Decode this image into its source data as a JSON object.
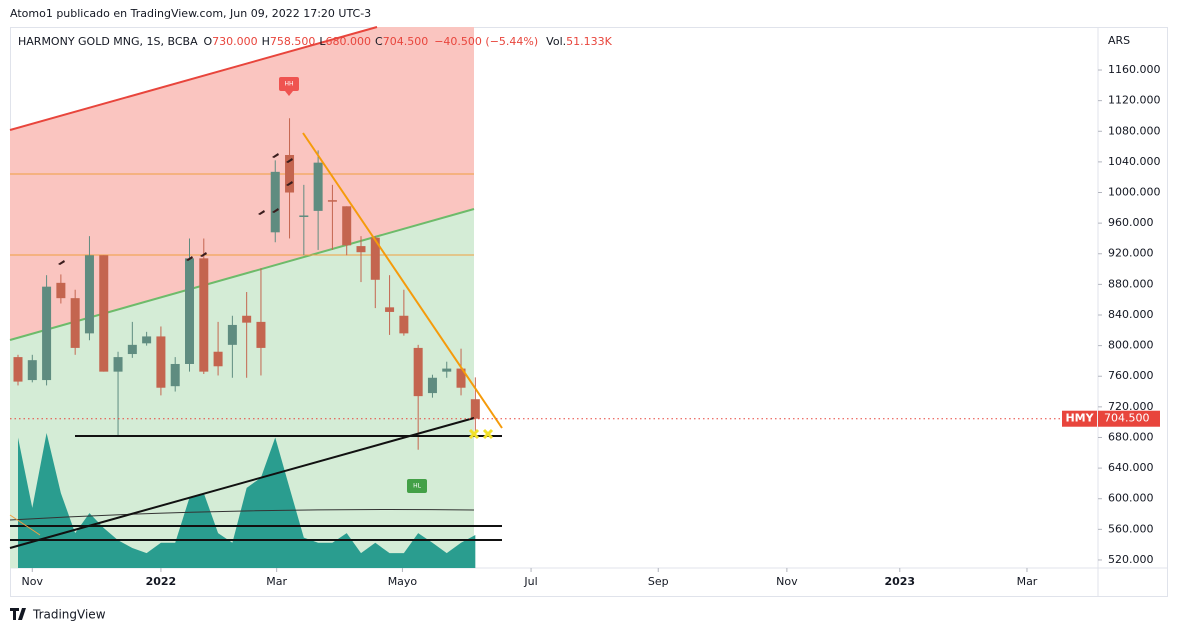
{
  "attribution": "Atomo1 publicado en TradingView.com, Jun 09, 2022 17:20 UTC-3",
  "brand": "TradingView",
  "chart_data": {
    "type": "candlestick",
    "title": "HARMONY GOLD MNG, 1S, BCBA",
    "header_items": [
      {
        "key": "O",
        "text": "730.000"
      },
      {
        "key": "H",
        "text": "758.500"
      },
      {
        "key": "L",
        "text": "680.000"
      },
      {
        "key": "C",
        "text": "704.500"
      }
    ],
    "change": "−40.500 (−5.44%)",
    "volume_key": "Vol.",
    "volume_text": "51.133K",
    "currency": "ARS",
    "symbol_short": "HMY",
    "last_price_label": "704.500",
    "x": [
      0,
      1,
      2,
      3,
      4,
      5,
      6,
      7,
      8,
      9,
      10,
      11,
      12,
      13,
      14,
      15,
      16,
      17,
      18,
      19,
      20,
      21,
      22,
      23,
      24,
      25,
      26,
      27,
      28,
      29,
      30,
      31,
      32
    ],
    "open": [
      785,
      755,
      755,
      882,
      862,
      816,
      918,
      766,
      789,
      803,
      812,
      747,
      776,
      914,
      792,
      801,
      839,
      831,
      948,
      1049,
      968,
      976,
      990,
      982,
      930,
      941,
      850,
      839,
      797,
      738,
      766,
      770,
      730
    ],
    "high": [
      788,
      788,
      892,
      893,
      873,
      943,
      918,
      792,
      831,
      818,
      825,
      785,
      940,
      940,
      831,
      839,
      870,
      901,
      1042,
      1097,
      1010,
      1055,
      1010,
      982,
      943,
      943,
      892,
      873,
      801,
      762,
      779,
      796,
      758.5
    ],
    "low": [
      748,
      752,
      748,
      855,
      788,
      807,
      766,
      681,
      784,
      800,
      735,
      740,
      766,
      763,
      761,
      758,
      758,
      761,
      935,
      940,
      918,
      925,
      925,
      918,
      883,
      849,
      814,
      813,
      664,
      732,
      758,
      735,
      680
    ],
    "close": [
      753,
      781,
      877,
      862,
      797,
      918,
      766,
      785,
      801,
      812,
      745,
      776,
      914,
      766,
      773,
      827,
      830,
      797,
      1027,
      1000,
      970,
      1039,
      988,
      931,
      922,
      886,
      844,
      816,
      734,
      758,
      770,
      745,
      704.5
    ],
    "volume": [
      202,
      93,
      209,
      116,
      54,
      85,
      62,
      43,
      31,
      23,
      39,
      39,
      109,
      116,
      54,
      39,
      124,
      140,
      202,
      124,
      47,
      39,
      39,
      54,
      23,
      39,
      23,
      23,
      54,
      39,
      23,
      39,
      51.133
    ],
    "up_color": "#5f8c80",
    "down_color": "#c4654f",
    "volume_color": "#2a9d8f",
    "xlim": [
      -0.56,
      75.5
    ],
    "xticks": [
      {
        "value": 1,
        "label": "Nov"
      },
      {
        "value": 10,
        "label": "2022"
      },
      {
        "value": 18.1,
        "label": "Mar"
      },
      {
        "value": 26.9,
        "label": "Mayo"
      },
      {
        "value": 35.9,
        "label": "Jul"
      },
      {
        "value": 44.8,
        "label": "Sep"
      },
      {
        "value": 53.8,
        "label": "Nov"
      },
      {
        "value": 61.7,
        "label": "2023"
      },
      {
        "value": 70.6,
        "label": "Mar"
      }
    ],
    "ylim": [
      509.5,
      1216.2
    ],
    "yticks": [
      {
        "value": 520,
        "label": "520.000"
      },
      {
        "value": 560,
        "label": "560.000"
      },
      {
        "value": 600,
        "label": "600.000"
      },
      {
        "value": 640,
        "label": "640.000"
      },
      {
        "value": 680,
        "label": "680.000"
      },
      {
        "value": 720,
        "label": "720.000"
      },
      {
        "value": 760,
        "label": "760.000"
      },
      {
        "value": 800,
        "label": "800.000"
      },
      {
        "value": 840,
        "label": "840.000"
      },
      {
        "value": 880,
        "label": "880.000"
      },
      {
        "value": 920,
        "label": "920.000"
      },
      {
        "value": 960,
        "label": "960.000"
      },
      {
        "value": 1000,
        "label": "1000.000"
      },
      {
        "value": 1040,
        "label": "1040.000"
      },
      {
        "value": 1080,
        "label": "1080.000"
      },
      {
        "value": 1120,
        "label": "1120.000"
      },
      {
        "value": 1160,
        "label": "1160.000"
      }
    ],
    "grid": false
  },
  "markers": [
    {
      "text": "HH"
    },
    {
      "text": "HL"
    }
  ]
}
